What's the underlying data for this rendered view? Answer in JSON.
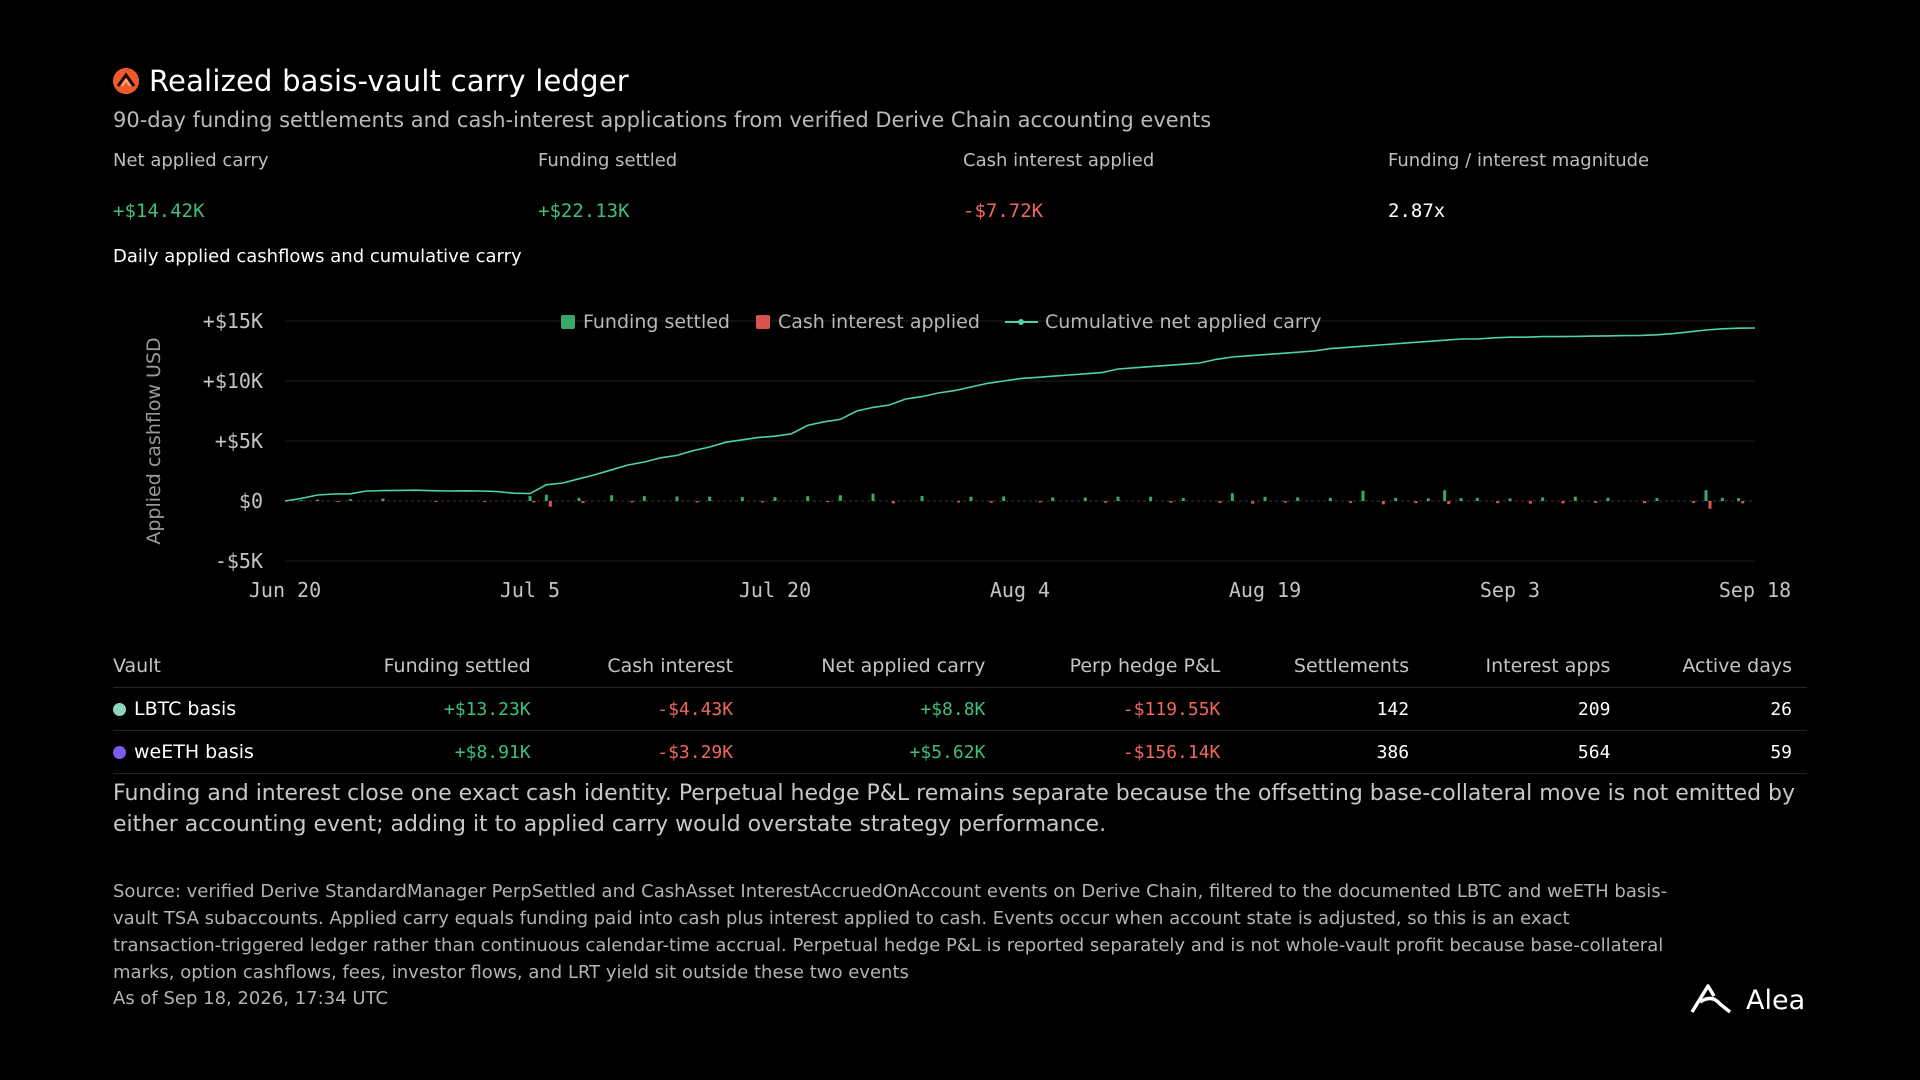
{
  "header": {
    "title": "Realized basis-vault carry ledger",
    "subtitle": "90-day funding settlements and cash-interest applications from verified Derive Chain accounting events",
    "icon": "derive-logo-icon",
    "icon_color": "#ef5a2a"
  },
  "kpis": [
    {
      "label": "Net applied carry",
      "value": "+$14.42K",
      "tone": "pos"
    },
    {
      "label": "Funding settled",
      "value": "+$22.13K",
      "tone": "pos"
    },
    {
      "label": "Cash interest applied",
      "value": "-$7.72K",
      "tone": "neg"
    },
    {
      "label": "Funding / interest magnitude",
      "value": "2.87x",
      "tone": "plain"
    }
  ],
  "chart_section_title": "Daily applied cashflows and cumulative carry",
  "chart_data": {
    "type": "bar",
    "ylabel": "Applied cashflow USD",
    "xlabel": "",
    "ylim": [
      -5000,
      15000
    ],
    "y_ticks": [
      {
        "value": 15000,
        "label": "+$15K"
      },
      {
        "value": 10000,
        "label": "+$10K"
      },
      {
        "value": 5000,
        "label": "+$5K"
      },
      {
        "value": 0,
        "label": "$0"
      },
      {
        "value": -5000,
        "label": "-$5K"
      }
    ],
    "x_ticks": [
      {
        "day": 0,
        "label": "Jun 20"
      },
      {
        "day": 15,
        "label": "Jul 5"
      },
      {
        "day": 30,
        "label": "Jul 20"
      },
      {
        "day": 45,
        "label": "Aug 4"
      },
      {
        "day": 60,
        "label": "Aug 19"
      },
      {
        "day": 75,
        "label": "Sep 3"
      },
      {
        "day": 90,
        "label": "Sep 18"
      }
    ],
    "x_range": [
      0,
      90
    ],
    "grid": true,
    "legend_position": "top-center",
    "colors": {
      "funding": "#3aa86a",
      "interest": "#d9534f",
      "cumulative": "#4fd1a9"
    },
    "series": [
      {
        "name": "Funding settled",
        "type": "bar",
        "points": [
          [
            1,
            80
          ],
          [
            2,
            120
          ],
          [
            4,
            150
          ],
          [
            6,
            200
          ],
          [
            15,
            420
          ],
          [
            16,
            520
          ],
          [
            18,
            260
          ],
          [
            20,
            480
          ],
          [
            22,
            410
          ],
          [
            24,
            380
          ],
          [
            26,
            360
          ],
          [
            28,
            330
          ],
          [
            30,
            320
          ],
          [
            32,
            400
          ],
          [
            34,
            480
          ],
          [
            36,
            620
          ],
          [
            39,
            420
          ],
          [
            42,
            360
          ],
          [
            44,
            380
          ],
          [
            47,
            300
          ],
          [
            49,
            290
          ],
          [
            51,
            360
          ],
          [
            53,
            360
          ],
          [
            55,
            250
          ],
          [
            58,
            650
          ],
          [
            60,
            350
          ],
          [
            62,
            300
          ],
          [
            64,
            260
          ],
          [
            66,
            850
          ],
          [
            68,
            260
          ],
          [
            70,
            220
          ],
          [
            71,
            900
          ],
          [
            72,
            240
          ],
          [
            73,
            260
          ],
          [
            75,
            220
          ],
          [
            77,
            300
          ],
          [
            79,
            360
          ],
          [
            81,
            260
          ],
          [
            84,
            240
          ],
          [
            87,
            900
          ],
          [
            88,
            260
          ],
          [
            89,
            240
          ]
        ]
      },
      {
        "name": "Cash interest applied",
        "type": "bar",
        "points": [
          [
            3,
            -60
          ],
          [
            9,
            -60
          ],
          [
            12,
            -60
          ],
          [
            15,
            -120
          ],
          [
            16,
            -480
          ],
          [
            18,
            -180
          ],
          [
            21,
            -120
          ],
          [
            25,
            -120
          ],
          [
            29,
            -120
          ],
          [
            33,
            -100
          ],
          [
            37,
            -200
          ],
          [
            41,
            -120
          ],
          [
            43,
            -140
          ],
          [
            46,
            -120
          ],
          [
            50,
            -140
          ],
          [
            54,
            -140
          ],
          [
            57,
            -160
          ],
          [
            59,
            -220
          ],
          [
            61,
            -140
          ],
          [
            65,
            -160
          ],
          [
            67,
            -280
          ],
          [
            69,
            -180
          ],
          [
            71,
            -260
          ],
          [
            74,
            -180
          ],
          [
            76,
            -220
          ],
          [
            78,
            -200
          ],
          [
            80,
            -160
          ],
          [
            83,
            -180
          ],
          [
            86,
            -160
          ],
          [
            87,
            -650
          ],
          [
            89,
            -200
          ]
        ]
      },
      {
        "name": "Cumulative net applied carry",
        "type": "line",
        "points": [
          [
            0,
            0
          ],
          [
            1,
            220
          ],
          [
            2,
            500
          ],
          [
            3,
            580
          ],
          [
            4,
            600
          ],
          [
            5,
            830
          ],
          [
            6,
            870
          ],
          [
            7,
            880
          ],
          [
            8,
            900
          ],
          [
            9,
            860
          ],
          [
            10,
            830
          ],
          [
            11,
            850
          ],
          [
            12,
            830
          ],
          [
            13,
            780
          ],
          [
            14,
            650
          ],
          [
            15,
            620
          ],
          [
            16,
            1350
          ],
          [
            17,
            1500
          ],
          [
            18,
            1850
          ],
          [
            19,
            2200
          ],
          [
            20,
            2600
          ],
          [
            21,
            3000
          ],
          [
            22,
            3250
          ],
          [
            23,
            3600
          ],
          [
            24,
            3800
          ],
          [
            25,
            4200
          ],
          [
            26,
            4500
          ],
          [
            27,
            4900
          ],
          [
            28,
            5100
          ],
          [
            29,
            5300
          ],
          [
            30,
            5400
          ],
          [
            31,
            5600
          ],
          [
            32,
            6300
          ],
          [
            33,
            6600
          ],
          [
            34,
            6800
          ],
          [
            35,
            7500
          ],
          [
            36,
            7800
          ],
          [
            37,
            8000
          ],
          [
            38,
            8500
          ],
          [
            39,
            8700
          ],
          [
            40,
            9000
          ],
          [
            41,
            9200
          ],
          [
            42,
            9500
          ],
          [
            43,
            9800
          ],
          [
            44,
            10000
          ],
          [
            45,
            10200
          ],
          [
            46,
            10300
          ],
          [
            47,
            10400
          ],
          [
            48,
            10500
          ],
          [
            49,
            10600
          ],
          [
            50,
            10700
          ],
          [
            51,
            11000
          ],
          [
            52,
            11100
          ],
          [
            53,
            11200
          ],
          [
            54,
            11300
          ],
          [
            55,
            11400
          ],
          [
            56,
            11500
          ],
          [
            57,
            11800
          ],
          [
            58,
            12000
          ],
          [
            59,
            12100
          ],
          [
            60,
            12200
          ],
          [
            61,
            12300
          ],
          [
            62,
            12400
          ],
          [
            63,
            12500
          ],
          [
            64,
            12700
          ],
          [
            65,
            12800
          ],
          [
            66,
            12900
          ],
          [
            67,
            13000
          ],
          [
            68,
            13100
          ],
          [
            69,
            13200
          ],
          [
            70,
            13300
          ],
          [
            71,
            13400
          ],
          [
            72,
            13500
          ],
          [
            73,
            13500
          ],
          [
            74,
            13600
          ],
          [
            75,
            13650
          ],
          [
            76,
            13650
          ],
          [
            77,
            13700
          ],
          [
            78,
            13700
          ],
          [
            79,
            13720
          ],
          [
            80,
            13740
          ],
          [
            81,
            13760
          ],
          [
            82,
            13780
          ],
          [
            83,
            13800
          ],
          [
            84,
            13850
          ],
          [
            85,
            13950
          ],
          [
            86,
            14100
          ],
          [
            87,
            14250
          ],
          [
            88,
            14350
          ],
          [
            89,
            14400
          ],
          [
            90,
            14420
          ]
        ]
      }
    ]
  },
  "table": {
    "headers": [
      "Vault",
      "Funding settled",
      "Cash interest",
      "Net applied carry",
      "Perp hedge P&L",
      "Settlements",
      "Interest apps",
      "Active days"
    ],
    "rows": [
      {
        "vault": "LBTC basis",
        "icon": "lbtc-icon",
        "icon_color": "#8fd6c0",
        "funding": "+$13.23K",
        "interest": "-$4.43K",
        "net": "+$8.8K",
        "perp": "-$119.55K",
        "settlements": "142",
        "interest_apps": "209",
        "active_days": "26"
      },
      {
        "vault": "weETH basis",
        "icon": "weeth-icon",
        "icon_color": "#7b5cf0",
        "funding": "+$8.91K",
        "interest": "-$3.29K",
        "net": "+$5.62K",
        "perp": "-$156.14K",
        "settlements": "386",
        "interest_apps": "564",
        "active_days": "59"
      }
    ]
  },
  "note": "Funding and interest close one exact cash identity. Perpetual hedge P&L remains separate because the offsetting base-collateral move is not emitted by either accounting event; adding it to applied carry would overstate strategy performance.",
  "source": "Source: verified Derive StandardManager PerpSettled and CashAsset InterestAccruedOnAccount events on Derive Chain, filtered to the documented LBTC and weETH basis-vault TSA subaccounts. Applied carry equals funding paid into cash plus interest applied to cash. Events occur when account state is adjusted, so this is an exact transaction-triggered ledger rather than continuous calendar-time accrual. Perpetual hedge P&L is reported separately and is not whole-vault profit because base-collateral marks, option cashflows, fees, investor flows, and LRT yield sit outside these two events",
  "as_of": "As of Sep 18, 2026, 17:34 UTC",
  "logo": {
    "text": "Alea",
    "icon": "alea-logo-icon"
  }
}
